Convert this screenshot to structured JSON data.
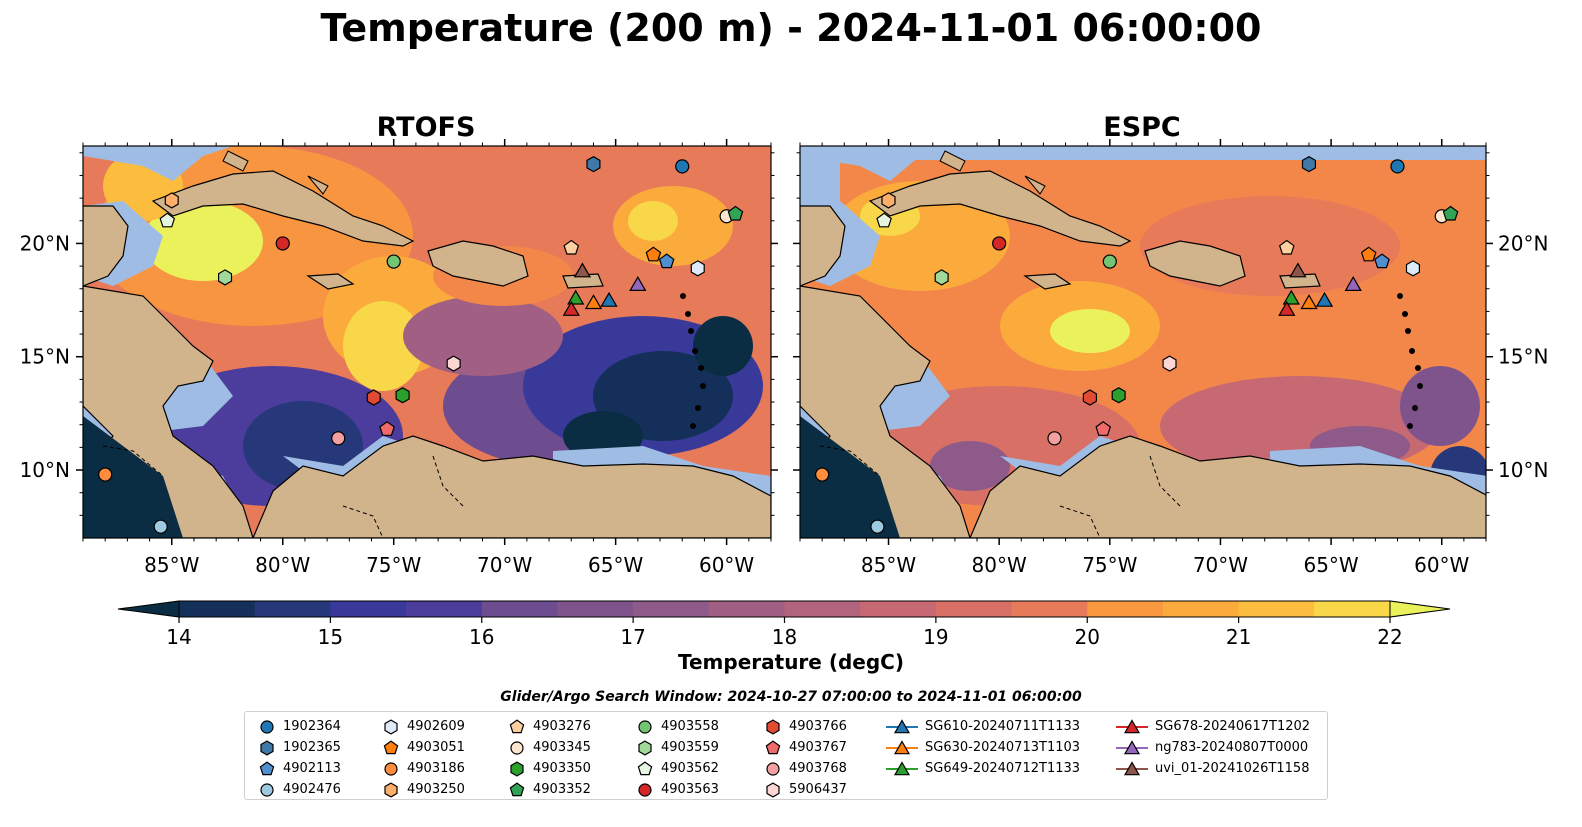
{
  "figure": {
    "title": "Temperature (200 m) - 2024-11-01 06:00:00",
    "panels": [
      {
        "title": "RTOFS"
      },
      {
        "title": "ESPC"
      }
    ],
    "lon_ticks": [
      "85°W",
      "80°W",
      "75°W",
      "70°W",
      "65°W",
      "60°W"
    ],
    "lat_ticks": [
      "20°N",
      "15°N",
      "10°N"
    ],
    "map_extent": {
      "lon": [
        -89,
        -58
      ],
      "lat": [
        7,
        24.3
      ]
    },
    "colors": {
      "land": "#d2b48c",
      "shelf": "#9fbde4",
      "colormap": [
        "#0b2d43",
        "#14305a",
        "#26377a",
        "#39399a",
        "#4c3c9c",
        "#5c4495",
        "#6d4c8f",
        "#7f548d",
        "#8e5a8a",
        "#a15f84",
        "#b2637d",
        "#c76973",
        "#d87066",
        "#e77a58",
        "#f3874a",
        "#f9983f",
        "#fbaa3c",
        "#fcbd3f",
        "#f8d748",
        "#eaf15b"
      ]
    }
  },
  "colorbar": {
    "label": "Temperature (degC)",
    "ticks": [
      "14",
      "15",
      "16",
      "17",
      "18",
      "19",
      "20",
      "21",
      "22"
    ],
    "range": [
      14,
      22
    ],
    "step": 0.5,
    "extend": "both"
  },
  "search_window": "Glider/Argo Search Window: 2024-10-27 07:00:00 to 2024-11-01 06:00:00",
  "legend": {
    "columns": [
      [
        {
          "label": "1902364",
          "marker": "circle",
          "color": "#1f77b4"
        },
        {
          "label": "1902365",
          "marker": "hexagon",
          "color": "#3e79a8"
        },
        {
          "label": "4902113",
          "marker": "pentagon",
          "color": "#4f8fd0"
        },
        {
          "label": "4902476",
          "marker": "circle",
          "color": "#9ecae1"
        }
      ],
      [
        {
          "label": "4902609",
          "marker": "hexagon",
          "color": "#deebf7"
        },
        {
          "label": "4903051",
          "marker": "pentagon",
          "color": "#ff7f0e"
        },
        {
          "label": "4903186",
          "marker": "circle",
          "color": "#fd8d3c"
        },
        {
          "label": "4903250",
          "marker": "hexagon",
          "color": "#fdae6b"
        }
      ],
      [
        {
          "label": "4903276",
          "marker": "pentagon",
          "color": "#fdd0a2"
        },
        {
          "label": "4903345",
          "marker": "circle",
          "color": "#fee6ce"
        },
        {
          "label": "4903350",
          "marker": "hexagon",
          "color": "#2ca02c"
        },
        {
          "label": "4903352",
          "marker": "pentagon",
          "color": "#31a354"
        }
      ],
      [
        {
          "label": "4903558",
          "marker": "circle",
          "color": "#74c476"
        },
        {
          "label": "4903559",
          "marker": "hexagon",
          "color": "#a1d99b"
        },
        {
          "label": "4903562",
          "marker": "pentagon",
          "color": "#e5f5e0"
        },
        {
          "label": "4903563",
          "marker": "circle",
          "color": "#d62728"
        }
      ],
      [
        {
          "label": "4903766",
          "marker": "hexagon",
          "color": "#e34a33"
        },
        {
          "label": "4903767",
          "marker": "pentagon",
          "color": "#f16a6a"
        },
        {
          "label": "4903768",
          "marker": "circle",
          "color": "#f4a0a0"
        },
        {
          "label": "5906437",
          "marker": "hexagon",
          "color": "#fcd5d5"
        }
      ],
      [
        {
          "label": "SG610-20240711T1133",
          "marker": "triangle",
          "color": "#1f77b4"
        },
        {
          "label": "SG630-20240713T1103",
          "marker": "triangle",
          "color": "#ff7f0e"
        },
        {
          "label": "SG649-20240712T1133",
          "marker": "triangle",
          "color": "#2ca02c"
        }
      ],
      [
        {
          "label": "SG678-20240617T1202",
          "marker": "triangle",
          "color": "#d62728"
        },
        {
          "label": "ng783-20240807T0000",
          "marker": "triangle",
          "color": "#9467bd"
        },
        {
          "label": "uvi_01-20241026T1158",
          "marker": "triangle",
          "color": "#8c564b"
        }
      ]
    ]
  },
  "platforms": [
    {
      "id": "1902364",
      "lon": -62.0,
      "lat": 23.4
    },
    {
      "id": "1902365",
      "lon": -66.0,
      "lat": 23.5
    },
    {
      "id": "4902113",
      "lon": -62.7,
      "lat": 19.2
    },
    {
      "id": "4902476",
      "lon": -85.5,
      "lat": 7.5
    },
    {
      "id": "4902609",
      "lon": -61.3,
      "lat": 18.9
    },
    {
      "id": "4903051",
      "lon": -63.3,
      "lat": 19.5
    },
    {
      "id": "4903186",
      "lon": -88.0,
      "lat": 9.8
    },
    {
      "id": "4903250",
      "lon": -85.0,
      "lat": 21.9
    },
    {
      "id": "4903276",
      "lon": -67.0,
      "lat": 19.8
    },
    {
      "id": "4903345",
      "lon": -60.0,
      "lat": 21.2
    },
    {
      "id": "4903350",
      "lon": -74.6,
      "lat": 13.3
    },
    {
      "id": "4903352",
      "lon": -59.6,
      "lat": 21.3
    },
    {
      "id": "4903558",
      "lon": -75.0,
      "lat": 19.2
    },
    {
      "id": "4903559",
      "lon": -82.6,
      "lat": 18.5
    },
    {
      "id": "4903562",
      "lon": -85.2,
      "lat": 21.0
    },
    {
      "id": "4903563",
      "lon": -80.0,
      "lat": 20.0
    },
    {
      "id": "4903766",
      "lon": -75.9,
      "lat": 13.2
    },
    {
      "id": "4903767",
      "lon": -75.3,
      "lat": 11.8
    },
    {
      "id": "4903768",
      "lon": -77.5,
      "lat": 11.4
    },
    {
      "id": "5906437",
      "lon": -72.3,
      "lat": 14.7
    },
    {
      "id": "SG610-20240711T1133",
      "lon": -65.3,
      "lat": 17.5
    },
    {
      "id": "SG630-20240713T1103",
      "lon": -66.0,
      "lat": 17.4
    },
    {
      "id": "SG649-20240712T1133",
      "lon": -66.8,
      "lat": 17.6
    },
    {
      "id": "SG678-20240617T1202",
      "lon": -67.0,
      "lat": 17.1
    },
    {
      "id": "ng783-20240807T0000",
      "lon": -64.0,
      "lat": 18.2
    },
    {
      "id": "uvi_01-20241026T1158",
      "lon": -66.5,
      "lat": 18.8
    }
  ]
}
